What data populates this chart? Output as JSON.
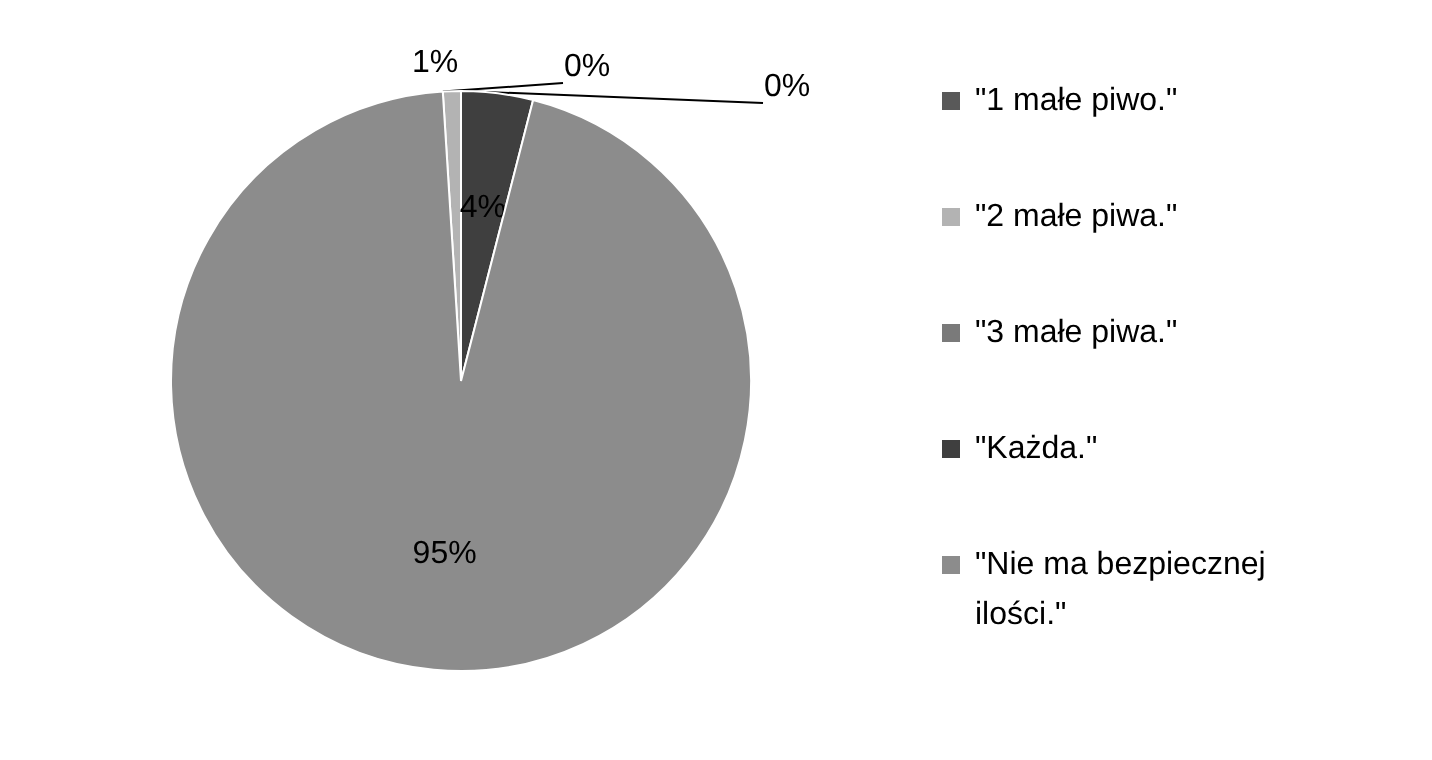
{
  "chart_data": {
    "type": "pie",
    "categories": [
      "\"1 małe piwo.\"",
      "\"2 małe piwa.\"",
      "\"3 małe piwa.\"",
      "\"Każda.\"",
      "\"Nie ma bezpiecznej ilości.\""
    ],
    "values": [
      0,
      1,
      0,
      4,
      95
    ],
    "colors": [
      "#595959",
      "#b3b3b3",
      "#7a7a7a",
      "#3f3f3f",
      "#8c8c8c"
    ],
    "value_labels": [
      "0%",
      "1%",
      "0%",
      "4%",
      "95%"
    ],
    "legend": "right"
  }
}
